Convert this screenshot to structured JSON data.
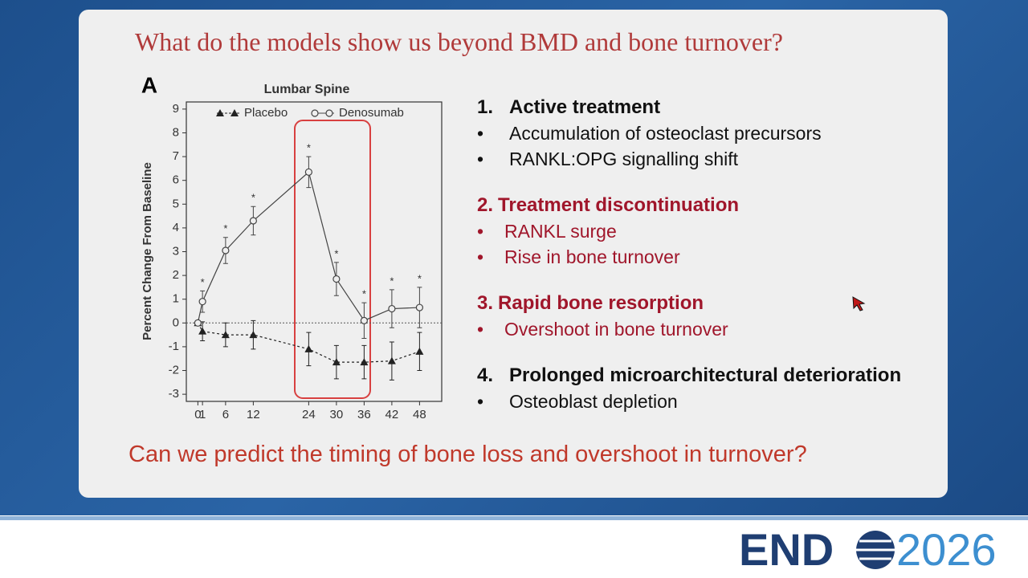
{
  "slide": {
    "title": "What do the models show us beyond BMD and bone turnover?",
    "sections": [
      {
        "number": "1.",
        "heading": "Active treatment",
        "bullets": [
          "Accumulation of osteoclast precursors",
          "RANKL:OPG signalling shift"
        ]
      },
      {
        "number": "2.",
        "heading": "Treatment discontinuation",
        "bullets": [
          "RANKL surge",
          "Rise in bone turnover"
        ]
      },
      {
        "number": "3.",
        "heading": "Rapid bone resorption",
        "bullets": [
          "Overshoot in bone turnover"
        ]
      },
      {
        "number": "4.",
        "heading": "Prolonged microarchitectural deterioration",
        "bullets": [
          "Osteoblast depletion"
        ]
      }
    ],
    "question": "Can we predict the timing of bone loss and overshoot in turnover?"
  },
  "footer": {
    "logo_left": "END",
    "logo_right": "2026"
  },
  "chart_data": {
    "type": "line",
    "panel_label": "A",
    "title": "Lumbar Spine",
    "y_label": "Percent Change From Baseline",
    "xlim": [
      -2.5,
      52.8
    ],
    "xticks": [
      0,
      1,
      6,
      12,
      24,
      30,
      36,
      42,
      48
    ],
    "ylim": [
      -3.3,
      9.3
    ],
    "yticks": [
      -3,
      -2,
      -1,
      0,
      1,
      2,
      3,
      4,
      5,
      6,
      7,
      8,
      9
    ],
    "series": [
      {
        "name": "Placebo",
        "color": "#222222",
        "marker": "triangle",
        "dashed": true,
        "x": [
          0,
          1,
          6,
          12,
          24,
          30,
          36,
          42,
          48
        ],
        "values": [
          0,
          -0.35,
          -0.5,
          -0.5,
          -1.1,
          -1.65,
          -1.65,
          -1.6,
          -1.2
        ],
        "errors": [
          0,
          0.4,
          0.5,
          0.6,
          0.7,
          0.7,
          0.7,
          0.8,
          0.8
        ]
      },
      {
        "name": "Denosumab",
        "color": "#444444",
        "marker": "circle",
        "dashed": false,
        "x": [
          0,
          1,
          6,
          12,
          24,
          30,
          36,
          42,
          48
        ],
        "values": [
          0,
          0.9,
          3.05,
          4.3,
          6.35,
          1.85,
          0.1,
          0.6,
          0.65
        ],
        "errors": [
          0,
          0.45,
          0.55,
          0.6,
          0.65,
          0.7,
          0.75,
          0.8,
          0.85
        ],
        "significance": [
          null,
          "*",
          "*",
          "*",
          "*",
          "*",
          "*",
          "*",
          "*"
        ]
      }
    ]
  }
}
